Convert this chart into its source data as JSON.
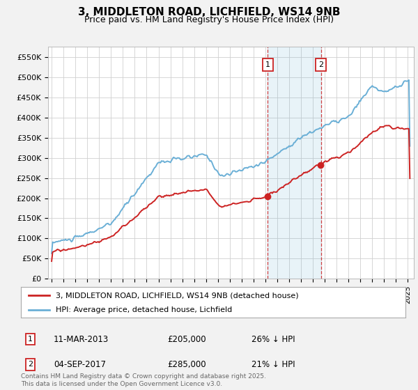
{
  "title": "3, MIDDLETON ROAD, LICHFIELD, WS14 9NB",
  "subtitle": "Price paid vs. HM Land Registry's House Price Index (HPI)",
  "ylim": [
    0,
    575000
  ],
  "yticks": [
    0,
    50000,
    100000,
    150000,
    200000,
    250000,
    300000,
    350000,
    400000,
    450000,
    500000,
    550000
  ],
  "ylabels": [
    "£0",
    "£50K",
    "£100K",
    "£150K",
    "£200K",
    "£250K",
    "£300K",
    "£350K",
    "£400K",
    "£450K",
    "£500K",
    "£550K"
  ],
  "xlim_start": 1994.7,
  "xlim_end": 2025.5,
  "hpi_color": "#6aafd6",
  "price_color": "#cc2222",
  "marker1_date": 2013.19,
  "marker1_price": 205000,
  "marker2_date": 2017.67,
  "marker2_price": 285000,
  "legend_line1": "3, MIDDLETON ROAD, LICHFIELD, WS14 9NB (detached house)",
  "legend_line2": "HPI: Average price, detached house, Lichfield",
  "footer": "Contains HM Land Registry data © Crown copyright and database right 2025.\nThis data is licensed under the Open Government Licence v3.0.",
  "bg_color": "#f2f2f2",
  "plot_bg": "#ffffff",
  "title_fontsize": 11,
  "subtitle_fontsize": 9
}
